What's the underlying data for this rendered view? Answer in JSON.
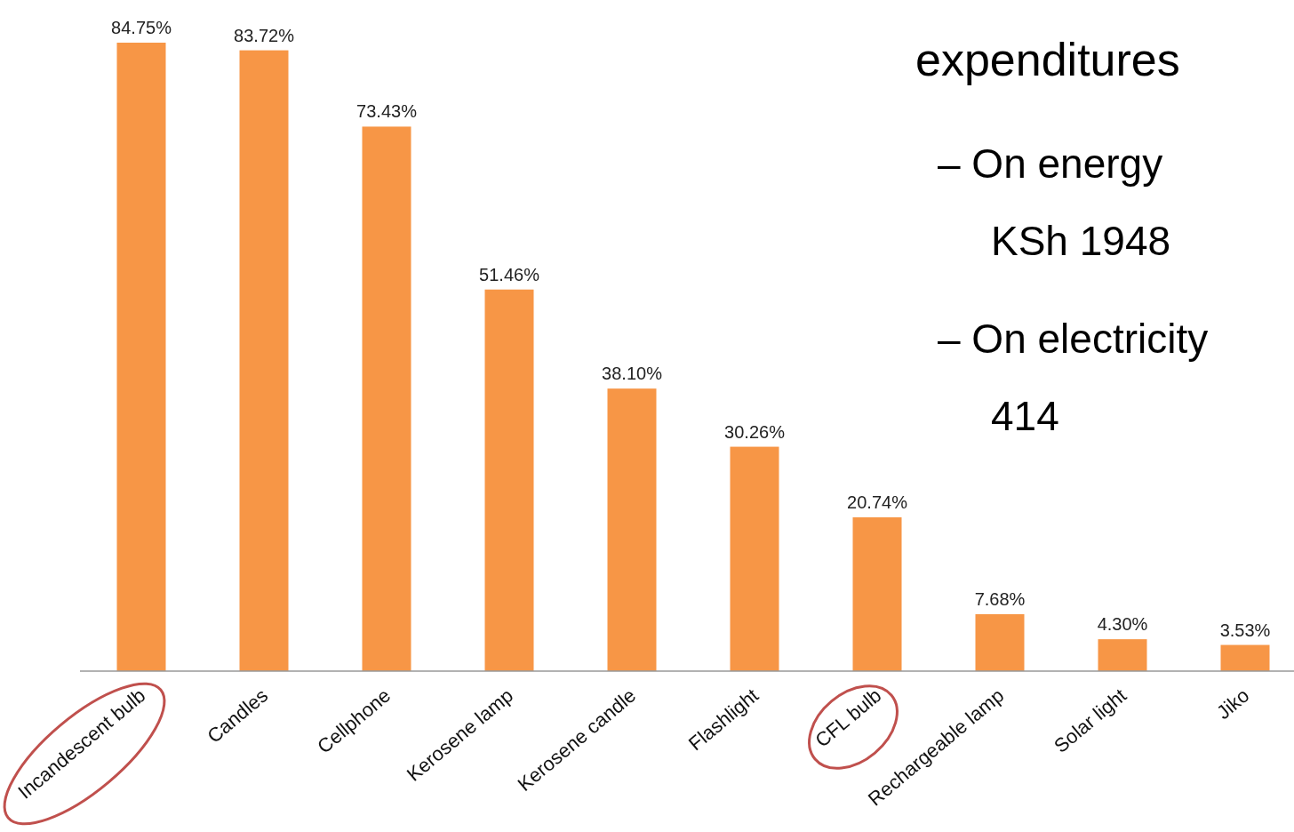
{
  "chart_data": {
    "type": "bar",
    "categories": [
      "Incandescent bulb",
      "Candles",
      "Cellphone",
      "Kerosene lamp",
      "Kerosene candle",
      "Flashlight",
      "CFL bulb",
      "Rechargeable lamp",
      "Solar light",
      "Jiko"
    ],
    "values": [
      84.75,
      83.72,
      73.43,
      51.46,
      38.1,
      30.26,
      20.74,
      7.68,
      4.3,
      3.53
    ],
    "value_labels": [
      "84.75%",
      "83.72%",
      "73.43%",
      "51.46%",
      "38.10%",
      "30.26%",
      "20.74%",
      "7.68%",
      "4.30%",
      "3.53%"
    ],
    "color": "#f79646",
    "annotations": [
      "expenditures",
      "– On energy",
      "KSh 1948",
      "– On electricity",
      "414"
    ]
  }
}
